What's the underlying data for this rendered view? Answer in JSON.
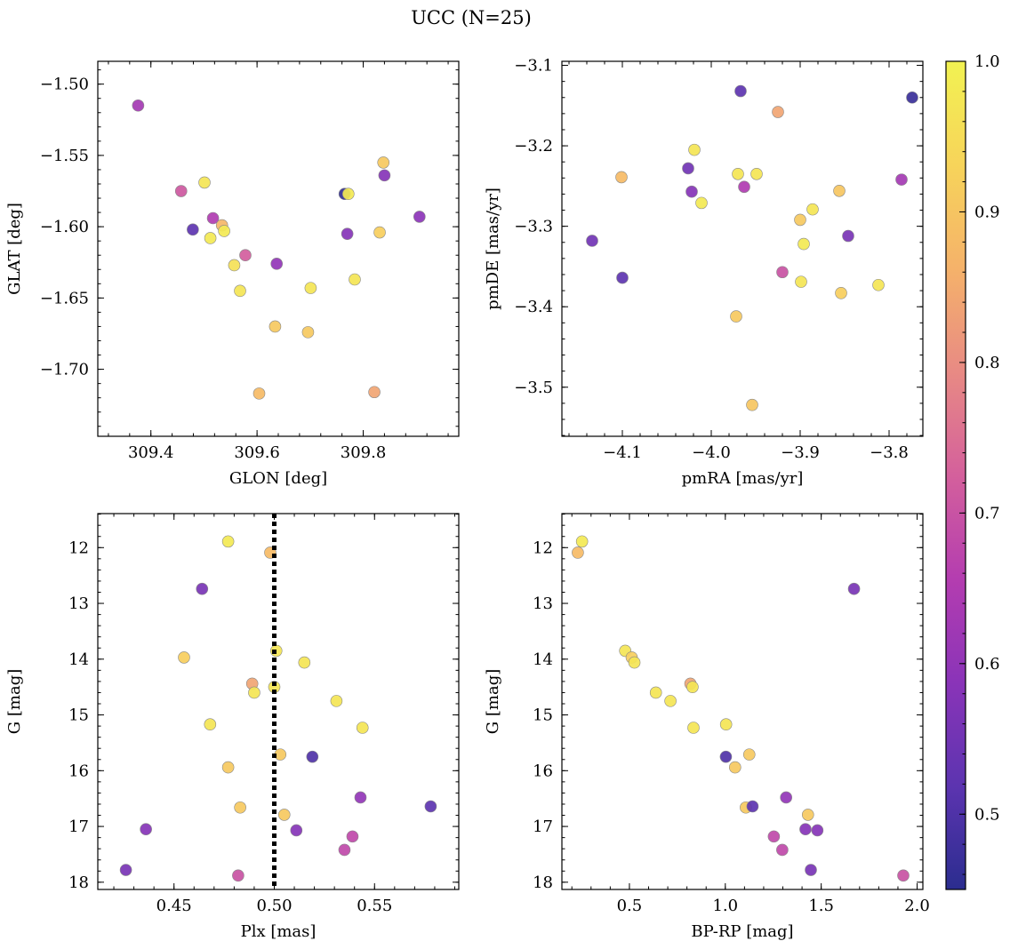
{
  "title": "UCC (N=25)",
  "colorbar": {
    "min": 0.45,
    "max": 1.0,
    "ticks": [
      0.5,
      0.6,
      0.7,
      0.8,
      0.9,
      1.0
    ],
    "tick_labels": [
      "0.5",
      "0.6",
      "0.7",
      "0.8",
      "0.9",
      "1.0"
    ],
    "colormap": "plasma",
    "stops": [
      "#2b2d8f",
      "#5c34b0",
      "#8a34b8",
      "#b43db0",
      "#d4609c",
      "#e88a84",
      "#f5b26a",
      "#f7d45a",
      "#f2f252"
    ]
  },
  "chart_data": [
    {
      "type": "scatter",
      "xlabel": "GLON [deg]",
      "ylabel": "GLAT [deg]",
      "xlim": [
        309.3,
        309.98
      ],
      "ylim": [
        -1.747,
        -1.484
      ],
      "xticks": [
        309.4,
        309.6,
        309.8
      ],
      "xtick_labels": [
        "309.4",
        "309.6",
        "309.8"
      ],
      "yticks": [
        -1.5,
        -1.55,
        -1.6,
        -1.65,
        -1.7
      ],
      "ytick_labels": [
        "−1.50",
        "−1.55",
        "−1.60",
        "−1.65",
        "−1.70"
      ],
      "x": [
        309.376,
        309.457,
        309.479,
        309.501,
        309.512,
        309.517,
        309.534,
        309.538,
        309.557,
        309.568,
        309.578,
        309.604,
        309.634,
        309.637,
        309.696,
        309.701,
        309.765,
        309.77,
        309.772,
        309.784,
        309.821,
        309.831,
        309.838,
        309.84,
        309.906
      ],
      "y": [
        -1.515,
        -1.575,
        -1.602,
        -1.569,
        -1.608,
        -1.594,
        -1.599,
        -1.603,
        -1.627,
        -1.645,
        -1.62,
        -1.717,
        -1.67,
        -1.626,
        -1.674,
        -1.643,
        -1.577,
        -1.605,
        -1.577,
        -1.637,
        -1.716,
        -1.604,
        -1.555,
        -1.564,
        -1.593
      ],
      "c": [
        0.63,
        0.71,
        0.52,
        0.97,
        0.98,
        0.65,
        0.87,
        0.98,
        0.96,
        0.97,
        0.72,
        0.88,
        0.91,
        0.6,
        0.91,
        0.97,
        0.46,
        0.58,
        0.98,
        0.97,
        0.84,
        0.92,
        0.91,
        0.58,
        0.59
      ]
    },
    {
      "type": "scatter",
      "xlabel": "pmRA [mas/yr]",
      "ylabel": "pmDE [mas/yr]",
      "xlim": [
        -4.168,
        -3.762
      ],
      "ylim": [
        -3.561,
        -3.095
      ],
      "xticks": [
        -4.1,
        -4.0,
        -3.9,
        -3.8
      ],
      "xtick_labels": [
        "−4.1",
        "−4.0",
        "−3.9",
        "−3.8"
      ],
      "yticks": [
        -3.1,
        -3.2,
        -3.3,
        -3.4,
        -3.5
      ],
      "ytick_labels": [
        "−3.1",
        "−3.2",
        "−3.3",
        "−3.4",
        "−3.5"
      ],
      "x": [
        -4.134,
        -4.1,
        -4.101,
        -4.026,
        -4.022,
        -4.019,
        -4.011,
        -3.972,
        -3.97,
        -3.967,
        -3.963,
        -3.954,
        -3.949,
        -3.925,
        -3.92,
        -3.9,
        -3.899,
        -3.896,
        -3.886,
        -3.856,
        -3.854,
        -3.846,
        -3.812,
        -3.786,
        -3.774
      ],
      "y": [
        -3.318,
        -3.364,
        -3.239,
        -3.228,
        -3.257,
        -3.205,
        -3.271,
        -3.412,
        -3.235,
        -3.132,
        -3.251,
        -3.522,
        -3.235,
        -3.158,
        -3.357,
        -3.292,
        -3.369,
        -3.322,
        -3.279,
        -3.256,
        -3.383,
        -3.312,
        -3.373,
        -3.242,
        -3.14
      ],
      "c": [
        0.55,
        0.52,
        0.88,
        0.55,
        0.58,
        0.97,
        0.98,
        0.91,
        0.97,
        0.52,
        0.65,
        0.9,
        0.97,
        0.84,
        0.7,
        0.91,
        0.97,
        0.98,
        0.97,
        0.9,
        0.92,
        0.56,
        0.97,
        0.63,
        0.47
      ]
    },
    {
      "type": "scatter",
      "xlabel": "Plx [mas]",
      "ylabel": "G [mag]",
      "xlim": [
        0.412,
        0.592
      ],
      "ylim": [
        18.13,
        11.39
      ],
      "xticks": [
        0.45,
        0.5,
        0.55
      ],
      "xtick_labels": [
        "0.45",
        "0.50",
        "0.55"
      ],
      "yticks": [
        12,
        13,
        14,
        15,
        16,
        17,
        18
      ],
      "ytick_labels": [
        "12",
        "13",
        "14",
        "15",
        "16",
        "17",
        "18"
      ],
      "vline_x": 0.5,
      "x": [
        0.477,
        0.498,
        0.464,
        0.455,
        0.501,
        0.515,
        0.489,
        0.5,
        0.49,
        0.531,
        0.468,
        0.544,
        0.503,
        0.519,
        0.477,
        0.543,
        0.483,
        0.578,
        0.505,
        0.436,
        0.511,
        0.539,
        0.535,
        0.426,
        0.482
      ],
      "y": [
        11.89,
        12.09,
        12.74,
        13.97,
        13.85,
        14.06,
        14.44,
        14.5,
        14.6,
        14.75,
        15.17,
        15.23,
        15.71,
        15.75,
        15.94,
        16.48,
        16.66,
        16.64,
        16.79,
        17.05,
        17.07,
        17.18,
        17.42,
        17.78,
        17.88
      ],
      "c": [
        0.98,
        0.88,
        0.56,
        0.92,
        0.97,
        0.97,
        0.84,
        0.97,
        0.97,
        0.97,
        0.97,
        0.97,
        0.91,
        0.5,
        0.91,
        0.6,
        0.91,
        0.52,
        0.91,
        0.58,
        0.58,
        0.68,
        0.68,
        0.56,
        0.7
      ]
    },
    {
      "type": "scatter",
      "xlabel": "BP-RP [mag]",
      "ylabel": "G [mag]",
      "xlim": [
        0.148,
        2.03
      ],
      "ylim": [
        18.13,
        11.39
      ],
      "xticks": [
        0.5,
        1.0,
        1.5,
        2.0
      ],
      "xtick_labels": [
        "0.5",
        "1.0",
        "1.5",
        "2.0"
      ],
      "yticks": [
        12,
        13,
        14,
        15,
        16,
        17,
        18
      ],
      "ytick_labels": [
        "12",
        "13",
        "14",
        "15",
        "16",
        "17",
        "18"
      ],
      "x": [
        0.253,
        0.231,
        1.671,
        0.478,
        0.512,
        0.526,
        0.818,
        0.829,
        0.638,
        0.714,
        0.834,
        1.004,
        1.003,
        1.125,
        1.051,
        1.317,
        1.107,
        1.142,
        1.431,
        1.418,
        1.48,
        1.253,
        1.297,
        1.446,
        1.928
      ],
      "y": [
        11.89,
        12.09,
        12.74,
        13.85,
        13.97,
        14.06,
        14.44,
        14.5,
        14.6,
        14.75,
        15.23,
        15.17,
        15.75,
        15.71,
        15.94,
        16.48,
        16.66,
        16.64,
        16.79,
        17.05,
        17.07,
        17.18,
        17.42,
        17.78,
        17.88
      ],
      "c": [
        0.98,
        0.88,
        0.56,
        0.97,
        0.92,
        0.97,
        0.84,
        0.97,
        0.97,
        0.97,
        0.97,
        0.97,
        0.5,
        0.91,
        0.91,
        0.6,
        0.91,
        0.52,
        0.91,
        0.58,
        0.58,
        0.68,
        0.68,
        0.56,
        0.7
      ]
    }
  ]
}
